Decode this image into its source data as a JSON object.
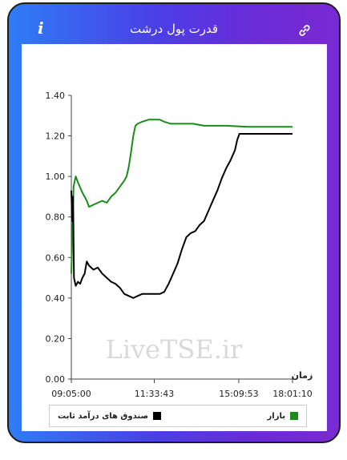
{
  "header": {
    "title": "قدرت پول درشت",
    "info_label": "i",
    "info_icon": "info-icon",
    "link_icon": "link-icon"
  },
  "watermark": "LiveTSE.ir",
  "chart_data": {
    "type": "line",
    "xlabel": "زمان",
    "ylabel": "",
    "ylim": [
      0,
      1.4
    ],
    "yticks": [
      "0.00",
      "0.20",
      "0.40",
      "0.60",
      "0.80",
      "1.00",
      "1.20",
      "1.40"
    ],
    "xticks": [
      "09:05:00",
      "11:33:43",
      "15:09:53",
      "18:01:10"
    ],
    "legend_position": "bottom",
    "series": [
      {
        "name": "بازار",
        "color": "#1a8c1a",
        "points": [
          [
            0,
            0.52
          ],
          [
            0.01,
            0.95
          ],
          [
            0.02,
            1.0
          ],
          [
            0.03,
            0.97
          ],
          [
            0.05,
            0.92
          ],
          [
            0.07,
            0.88
          ],
          [
            0.08,
            0.85
          ],
          [
            0.1,
            0.86
          ],
          [
            0.12,
            0.87
          ],
          [
            0.14,
            0.88
          ],
          [
            0.16,
            0.87
          ],
          [
            0.18,
            0.9
          ],
          [
            0.2,
            0.92
          ],
          [
            0.22,
            0.95
          ],
          [
            0.24,
            0.98
          ],
          [
            0.25,
            1.0
          ],
          [
            0.26,
            1.05
          ],
          [
            0.27,
            1.12
          ],
          [
            0.28,
            1.2
          ],
          [
            0.29,
            1.25
          ],
          [
            0.3,
            1.26
          ],
          [
            0.32,
            1.27
          ],
          [
            0.35,
            1.28
          ],
          [
            0.38,
            1.28
          ],
          [
            0.4,
            1.28
          ],
          [
            0.42,
            1.27
          ],
          [
            0.45,
            1.26
          ],
          [
            0.5,
            1.26
          ],
          [
            0.55,
            1.26
          ],
          [
            0.6,
            1.25
          ],
          [
            0.65,
            1.25
          ],
          [
            0.7,
            1.25
          ],
          [
            0.8,
            1.245
          ],
          [
            0.9,
            1.245
          ],
          [
            1.0,
            1.245
          ]
        ]
      },
      {
        "name": "صندوق های درآمد ثابت",
        "color": "#000000",
        "points": [
          [
            0,
            0.93
          ],
          [
            0.004,
            0.78
          ],
          [
            0.008,
            0.9
          ],
          [
            0.012,
            0.5
          ],
          [
            0.02,
            0.46
          ],
          [
            0.03,
            0.48
          ],
          [
            0.04,
            0.47
          ],
          [
            0.05,
            0.5
          ],
          [
            0.06,
            0.52
          ],
          [
            0.07,
            0.58
          ],
          [
            0.08,
            0.56
          ],
          [
            0.1,
            0.54
          ],
          [
            0.12,
            0.55
          ],
          [
            0.14,
            0.52
          ],
          [
            0.16,
            0.5
          ],
          [
            0.18,
            0.48
          ],
          [
            0.2,
            0.47
          ],
          [
            0.22,
            0.45
          ],
          [
            0.24,
            0.42
          ],
          [
            0.26,
            0.41
          ],
          [
            0.28,
            0.4
          ],
          [
            0.3,
            0.41
          ],
          [
            0.32,
            0.42
          ],
          [
            0.35,
            0.42
          ],
          [
            0.38,
            0.42
          ],
          [
            0.4,
            0.42
          ],
          [
            0.42,
            0.43
          ],
          [
            0.44,
            0.47
          ],
          [
            0.46,
            0.52
          ],
          [
            0.48,
            0.57
          ],
          [
            0.5,
            0.64
          ],
          [
            0.52,
            0.7
          ],
          [
            0.54,
            0.72
          ],
          [
            0.56,
            0.73
          ],
          [
            0.58,
            0.76
          ],
          [
            0.6,
            0.78
          ],
          [
            0.62,
            0.83
          ],
          [
            0.64,
            0.88
          ],
          [
            0.66,
            0.93
          ],
          [
            0.68,
            0.99
          ],
          [
            0.7,
            1.04
          ],
          [
            0.72,
            1.08
          ],
          [
            0.74,
            1.13
          ],
          [
            0.75,
            1.18
          ],
          [
            0.76,
            1.21
          ],
          [
            0.8,
            1.21
          ],
          [
            0.9,
            1.21
          ],
          [
            1.0,
            1.21
          ]
        ]
      }
    ]
  }
}
